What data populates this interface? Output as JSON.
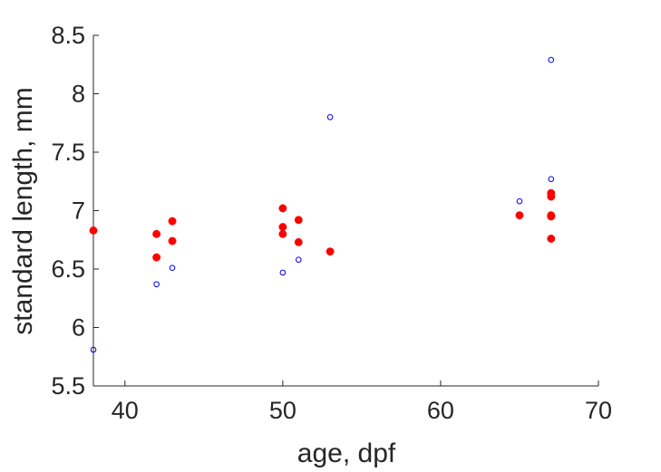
{
  "chart_data": {
    "type": "scatter",
    "title": "",
    "xlabel": "age, dpf",
    "ylabel": "standard length, mm",
    "xlim": [
      38,
      70
    ],
    "ylim": [
      5.5,
      8.5
    ],
    "xticks": [
      40,
      50,
      60,
      70
    ],
    "xtick_labels": [
      "40",
      "50",
      "60",
      "70"
    ],
    "yticks": [
      5.5,
      6,
      6.5,
      7,
      7.5,
      8,
      8.5
    ],
    "ytick_labels": [
      "5.5",
      "6",
      "6.5",
      "7",
      "7.5",
      "8",
      "8.5"
    ],
    "grid": false,
    "series": [
      {
        "marker": "open-circle",
        "color": "#0000ff",
        "points": [
          {
            "x": 38,
            "y": 5.81
          },
          {
            "x": 42,
            "y": 6.37
          },
          {
            "x": 43,
            "y": 6.51
          },
          {
            "x": 50,
            "y": 6.47
          },
          {
            "x": 51,
            "y": 6.58
          },
          {
            "x": 53,
            "y": 7.8
          },
          {
            "x": 65,
            "y": 7.08
          },
          {
            "x": 67,
            "y": 7.27
          },
          {
            "x": 67,
            "y": 8.29
          }
        ]
      },
      {
        "marker": "filled-circle",
        "color": "#ff0000",
        "points": [
          {
            "x": 38,
            "y": 6.83
          },
          {
            "x": 42,
            "y": 6.8
          },
          {
            "x": 42,
            "y": 6.6
          },
          {
            "x": 43,
            "y": 6.91
          },
          {
            "x": 43,
            "y": 6.74
          },
          {
            "x": 50,
            "y": 7.02
          },
          {
            "x": 50,
            "y": 6.86
          },
          {
            "x": 50,
            "y": 6.8
          },
          {
            "x": 51,
            "y": 6.92
          },
          {
            "x": 51,
            "y": 6.73
          },
          {
            "x": 53,
            "y": 6.65
          },
          {
            "x": 65,
            "y": 6.96
          },
          {
            "x": 67,
            "y": 7.15
          },
          {
            "x": 67,
            "y": 7.12
          },
          {
            "x": 67,
            "y": 6.96
          },
          {
            "x": 67,
            "y": 6.95
          },
          {
            "x": 67,
            "y": 6.76
          }
        ]
      }
    ]
  }
}
